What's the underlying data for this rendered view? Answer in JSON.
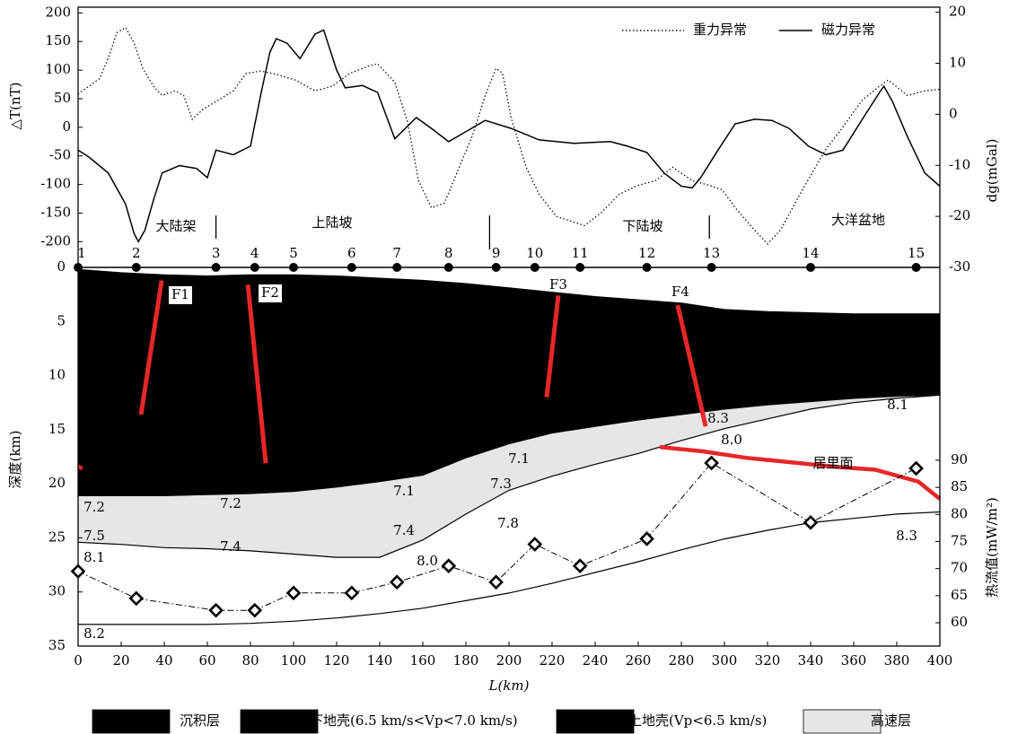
{
  "chart_data": [
    {
      "type": "line",
      "y_label": "△T(nT)",
      "y2_label": "dg(mGal)",
      "xlim": [
        0,
        400
      ],
      "ylim": [
        -245,
        210
      ],
      "yticks": [
        -200,
        -150,
        -100,
        -50,
        0,
        50,
        100,
        150,
        200
      ],
      "y2lim": [
        -30,
        21
      ],
      "y2ticks": [
        -30,
        -20,
        -10,
        0,
        10,
        20
      ],
      "series": [
        {
          "name": "重力异常",
          "color": "#000000",
          "line_style": "dotted",
          "axis": "y2",
          "x": [
            0,
            10,
            14,
            18,
            22,
            26,
            30,
            35,
            39,
            45,
            49,
            53,
            58,
            64,
            72,
            78,
            85,
            93,
            101,
            110,
            118,
            126,
            135,
            139,
            147,
            153,
            158,
            164,
            170,
            176,
            183,
            189,
            194,
            197,
            201,
            208,
            214,
            222,
            235,
            243,
            251,
            260,
            268,
            276,
            285,
            293,
            299,
            305,
            314,
            320,
            326,
            335,
            347,
            355,
            364,
            372,
            376,
            385,
            393,
            400
          ],
          "values": [
            4,
            7,
            11,
            16,
            17,
            14,
            9,
            5.5,
            3.7,
            4.6,
            3.7,
            -1,
            1,
            2.5,
            4.6,
            8,
            8.5,
            7.7,
            6.7,
            4.6,
            5.5,
            8,
            9.5,
            9.9,
            6.3,
            -1.6,
            -13,
            -18.3,
            -17.4,
            -11.3,
            -4.2,
            3.7,
            9,
            8.1,
            -0.7,
            -10.4,
            -15.7,
            -20,
            -21.8,
            -19.2,
            -15.7,
            -13.9,
            -13,
            -10.4,
            -13,
            -13.9,
            -14.8,
            -18.3,
            -22.7,
            -25.4,
            -22.7,
            -15.7,
            -6.9,
            -2.5,
            2.8,
            5.5,
            6.7,
            3.7,
            4.6,
            4.9
          ]
        },
        {
          "name": "磁力异常",
          "color": "#000000",
          "line_style": "solid",
          "x": [
            0,
            5,
            14,
            22,
            26,
            28,
            31,
            35,
            39,
            47,
            55,
            60,
            64,
            72,
            80,
            85,
            89,
            92,
            97,
            103,
            110,
            114,
            120,
            124,
            132,
            139,
            147,
            157,
            164,
            172,
            189,
            201,
            214,
            230,
            247,
            255,
            264,
            272,
            280,
            285,
            289,
            297,
            305,
            314,
            322,
            330,
            339,
            347,
            355,
            364,
            372,
            374,
            378,
            385,
            393,
            400
          ],
          "values": [
            -40,
            -52,
            -80,
            -134,
            -186,
            -200,
            -180,
            -127,
            -80,
            -67,
            -72,
            -88,
            -40,
            -48,
            -33,
            61,
            131,
            155,
            147,
            120,
            163,
            170,
            100,
            69,
            73,
            61,
            -20,
            17,
            -2,
            -25,
            12,
            -2,
            -22,
            -28,
            -25,
            -33,
            -44,
            -80,
            -103,
            -106,
            -88,
            -40,
            6,
            14,
            12,
            -2,
            -33,
            -48,
            -40,
            14,
            61,
            72,
            45,
            -17,
            -80,
            -103
          ]
        }
      ],
      "regions": [
        "大陆架",
        "上陆坡",
        "下陆坡",
        "大洋盆地"
      ],
      "region_bounds": [
        64,
        191,
        293
      ]
    },
    {
      "type": "section",
      "x_label": "L(km)",
      "y_label": "深度(km)",
      "y2_label": "热流值(mW/m²)",
      "xlim": [
        0,
        400
      ],
      "xticks": [
        0,
        20,
        40,
        60,
        80,
        100,
        120,
        140,
        160,
        180,
        200,
        220,
        240,
        260,
        280,
        300,
        320,
        340,
        360,
        380,
        400
      ],
      "ylim": [
        0,
        35
      ],
      "y_inverted": true,
      "yticks": [
        0,
        5,
        10,
        15,
        20,
        25,
        30,
        35
      ],
      "y2lim": [
        55.7,
        125.6
      ],
      "y2ticks": [
        60,
        65,
        70,
        75,
        80,
        85,
        90
      ],
      "x": [
        0,
        20,
        40,
        60,
        80,
        100,
        120,
        140,
        160,
        180,
        200,
        220,
        240,
        260,
        280,
        300,
        320,
        340,
        360,
        380,
        400
      ],
      "boundaries": [
        [
          0.2,
          0.5,
          0.7,
          0.8,
          0.7,
          0.7,
          0.8,
          1.0,
          1.2,
          1.5,
          1.9,
          2.3,
          2.7,
          3.0,
          3.3,
          3.9,
          4.1,
          4.2,
          4.3,
          4.3,
          4.3
        ],
        [
          21.1,
          21.1,
          21.1,
          21.0,
          20.9,
          20.7,
          20.3,
          19.8,
          19.2,
          17.6,
          16.3,
          15.3,
          14.7,
          14.1,
          13.6,
          13.1,
          12.7,
          12.4,
          12.1,
          11.9,
          11.8
        ],
        [
          25.4,
          25.6,
          25.9,
          26.0,
          26.2,
          26.5,
          26.8,
          26.8,
          25.2,
          22.8,
          20.6,
          19.3,
          18.2,
          17.2,
          16.0,
          14.9,
          14.0,
          13.1,
          12.5,
          12.1,
          11.8
        ],
        [
          33.0,
          33.0,
          33.0,
          33.0,
          32.9,
          32.7,
          32.4,
          32.0,
          31.5,
          30.8,
          30.1,
          29.2,
          28.2,
          27.2,
          26.1,
          25.1,
          24.3,
          23.6,
          23.2,
          22.8,
          22.6
        ]
      ],
      "fill_colors": [
        "#000000",
        "#e6e6e6"
      ],
      "curie": {
        "color": "#e8262a",
        "x": [
          0,
          2,
          250,
          270,
          290,
          310,
          330,
          350,
          370,
          390,
          400
        ],
        "values": [
          18.4,
          18.6,
          null,
          16.6,
          17.0,
          17.6,
          18.0,
          18.4,
          18.7,
          19.8,
          21.4
        ]
      },
      "stations": {
        "labels": [
          "1",
          "2",
          "3",
          "4",
          "5",
          "6",
          "7",
          "8",
          "9",
          "10",
          "11",
          "12",
          "13",
          "14",
          "15"
        ],
        "x": [
          0,
          27,
          64,
          82,
          100,
          127,
          148,
          172,
          194,
          212,
          233,
          264,
          294,
          340,
          389
        ]
      },
      "heat_flow": {
        "color": "#000000",
        "line_style": "dashdot",
        "axis": "y2",
        "values": [
          69.5,
          64.5,
          62.3,
          62.3,
          65.5,
          65.5,
          67.5,
          70.5,
          67.5,
          74.5,
          70.5,
          75.5,
          89.5,
          78.5,
          88.5
        ]
      },
      "fault_color": "#e8262a",
      "faults": [
        {
          "label": "F1",
          "x": [
            38.8,
            29.2
          ],
          "depth": [
            1.2,
            13.6
          ]
        },
        {
          "label": "F2",
          "x": [
            78.8,
            87.1
          ],
          "depth": [
            1.6,
            18.1
          ]
        },
        {
          "label": "F3",
          "x": [
            222.9,
            217.5
          ],
          "depth": [
            2.6,
            12.0
          ]
        },
        {
          "label": "F4",
          "x": [
            278.3,
            291.3
          ],
          "depth": [
            3.5,
            14.7
          ]
        }
      ],
      "annotations": [
        "7.2",
        "7.5",
        "8.1",
        "8.2",
        "7.2",
        "7.4",
        "7.1",
        "7.4",
        "8.0",
        "7.3",
        "7.1",
        "7.8",
        "8.3",
        "8.0",
        "8.1",
        "8.3",
        "居里面"
      ],
      "legend": [
        {
          "name": "沉积层",
          "color": "#000000"
        },
        {
          "name": "下地壳(6.5 km/s<Vp<7.0 km/s)",
          "color": "#000000"
        },
        {
          "name": "上地壳(Vp<6.5 km/s)",
          "color": "#000000"
        },
        {
          "name": "高速层",
          "color": "#e6e6e6"
        }
      ]
    }
  ]
}
